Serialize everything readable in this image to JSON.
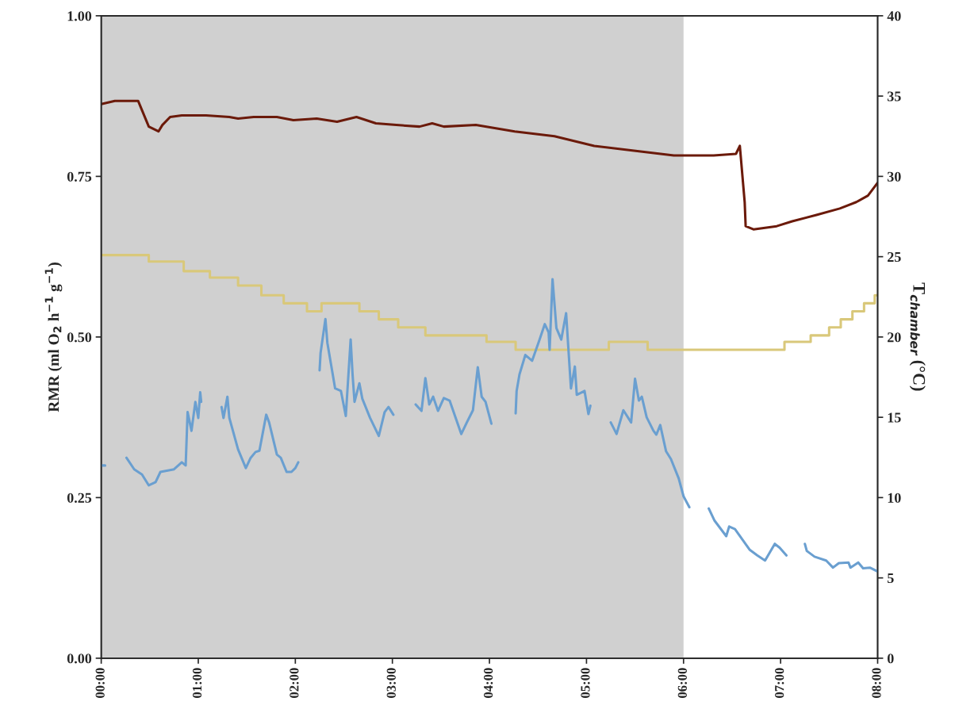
{
  "chart_data": {
    "type": "line",
    "ylabel": "RMR (ml O$_{2}$ h$^{−1}$ g$^{−1}$)",
    "y2label": "T$_{chamber}$ (°C)",
    "xlim": [
      0,
      8
    ],
    "xticks": [
      {
        "value": 0,
        "label": "00:00"
      },
      {
        "value": 1,
        "label": "01:00"
      },
      {
        "value": 2,
        "label": "02:00"
      },
      {
        "value": 3,
        "label": "03:00"
      },
      {
        "value": 4,
        "label": "04:00"
      },
      {
        "value": 5,
        "label": "05:00"
      },
      {
        "value": 6,
        "label": "06:00"
      },
      {
        "value": 7,
        "label": "07:00"
      },
      {
        "value": 8,
        "label": "08:00"
      }
    ],
    "ylim": [
      0,
      1
    ],
    "yticks": [
      {
        "value": 0,
        "label": "0.00"
      },
      {
        "value": 0.25,
        "label": "0.25"
      },
      {
        "value": 0.5,
        "label": "0.50"
      },
      {
        "value": 0.75,
        "label": "0.75"
      },
      {
        "value": 1,
        "label": "1.00"
      }
    ],
    "y2lim": [
      0,
      40
    ],
    "y2ticks": [
      0,
      5,
      10,
      15,
      20,
      25,
      30,
      35,
      40
    ],
    "bands": [
      {
        "axis": "x",
        "from": 0,
        "to": 6,
        "color": "#d0d0d0"
      }
    ],
    "series": [
      {
        "axis": "y",
        "color": "#6a9fd0",
        "x": [
          0.26,
          0.34,
          0.42,
          0.49,
          0.56,
          0.61,
          0.75,
          0.83,
          0.87,
          0.89,
          0.93,
          0.97,
          1.0,
          1.02,
          1.03,
          1.13,
          1.24,
          1.26,
          1.3,
          1.32,
          1.41,
          1.49,
          1.54,
          1.59,
          1.63,
          1.7,
          1.73,
          1.81,
          1.85,
          1.91,
          1.96,
          2.0,
          2.03,
          2.14,
          2.25,
          2.26,
          2.31,
          2.33,
          2.41,
          2.47,
          2.52,
          2.57,
          2.59,
          2.61,
          2.66,
          2.69,
          2.77,
          2.86,
          2.92,
          2.96,
          3.01,
          3.12,
          3.24,
          3.3,
          3.34,
          3.38,
          3.42,
          3.47,
          3.53,
          3.59,
          3.71,
          3.77,
          3.83,
          3.88,
          3.92,
          3.96,
          4.02,
          4.15,
          4.27,
          4.28,
          4.31,
          4.37,
          4.44,
          4.51,
          4.57,
          4.61,
          4.62,
          4.65,
          4.69,
          4.74,
          4.79,
          4.84,
          4.88,
          4.9,
          4.98,
          5.02,
          5.04,
          5.15,
          5.25,
          5.31,
          5.38,
          5.46,
          5.5,
          5.54,
          5.57,
          5.62,
          5.69,
          5.72,
          5.76,
          5.82,
          5.87,
          5.95,
          6.0,
          6.06,
          6.16,
          6.26,
          6.32,
          6.44,
          6.47,
          6.53,
          6.68,
          6.76,
          6.84,
          6.94,
          6.99,
          7.06,
          7.15,
          7.25,
          7.27,
          7.35,
          7.47,
          7.54,
          7.6,
          7.7,
          7.72,
          7.8,
          7.85,
          7.92,
          8.0
        ],
        "values": [
          0.312,
          0.294,
          0.286,
          0.269,
          0.274,
          0.29,
          0.294,
          0.305,
          0.3,
          0.383,
          0.354,
          0.399,
          0.374,
          0.414,
          0.399,
          null,
          0.391,
          0.374,
          0.407,
          0.374,
          0.325,
          0.296,
          0.312,
          0.321,
          0.323,
          0.379,
          0.367,
          0.317,
          0.312,
          0.29,
          0.29,
          0.296,
          0.305,
          null,
          0.448,
          0.475,
          0.528,
          0.491,
          0.42,
          0.416,
          0.377,
          0.496,
          0.441,
          0.399,
          0.428,
          0.404,
          0.374,
          0.346,
          0.383,
          0.391,
          0.379,
          null,
          0.395,
          0.385,
          0.436,
          0.395,
          0.407,
          0.385,
          0.405,
          0.401,
          0.349,
          0.368,
          0.386,
          0.453,
          0.407,
          0.399,
          0.365,
          null,
          0.381,
          0.416,
          0.442,
          0.472,
          0.463,
          0.493,
          0.52,
          0.507,
          0.48,
          0.59,
          0.514,
          0.496,
          0.537,
          0.42,
          0.454,
          0.41,
          0.416,
          0.38,
          0.393,
          null,
          0.367,
          0.349,
          0.386,
          0.367,
          0.435,
          0.401,
          0.407,
          0.375,
          0.354,
          0.348,
          0.363,
          0.322,
          0.31,
          0.28,
          0.252,
          0.235,
          null,
          0.233,
          0.214,
          0.19,
          0.205,
          0.201,
          0.169,
          0.16,
          0.152,
          0.178,
          0.172,
          0.16,
          null,
          0.178,
          0.167,
          0.158,
          0.152,
          0.141,
          0.148,
          0.149,
          0.141,
          0.149,
          0.14,
          0.141,
          0.135
        ]
      },
      {
        "type": "line",
        "axis": "y",
        "color": "#6a9fd0",
        "x": [
          0.0,
          0.04
        ],
        "values": [
          0.3,
          0.3
        ]
      },
      {
        "type": "line",
        "axis": "y2",
        "color": "#6b1a0a",
        "x": [
          0,
          0.14,
          0.38,
          0.49,
          0.59,
          0.63,
          0.71,
          0.83,
          1.08,
          1.32,
          1.41,
          1.57,
          1.81,
          1.98,
          2.22,
          2.43,
          2.63,
          2.83,
          3.04,
          3.28,
          3.41,
          3.53,
          3.86,
          4.26,
          4.67,
          5.08,
          5.49,
          5.9,
          6.31,
          6.54,
          6.58,
          6.63,
          6.64,
          6.72,
          6.96,
          7.12,
          7.37,
          7.61,
          7.78,
          7.9,
          8.0
        ],
        "values": [
          34.5,
          34.7,
          34.7,
          33.1,
          32.8,
          33.2,
          33.7,
          33.8,
          33.8,
          33.7,
          33.6,
          33.7,
          33.7,
          33.5,
          33.6,
          33.4,
          33.7,
          33.3,
          33.2,
          33.1,
          33.3,
          33.1,
          33.2,
          32.8,
          32.5,
          31.9,
          31.6,
          31.3,
          31.3,
          31.4,
          31.9,
          28.4,
          26.9,
          26.7,
          26.9,
          27.2,
          27.6,
          28.0,
          28.4,
          28.8,
          29.6
        ]
      },
      {
        "type": "step",
        "axis": "y2",
        "color": "#d9c87a",
        "x": [
          0,
          0.49,
          0.85,
          1.12,
          1.41,
          1.65,
          1.88,
          2.12,
          2.27,
          2.66,
          2.86,
          3.06,
          3.34,
          3.97,
          4.27,
          5.23,
          5.63,
          7.04,
          7.31,
          7.5,
          7.62,
          7.74,
          7.86,
          7.97,
          8.0
        ],
        "values": [
          25.1,
          24.7,
          24.1,
          23.7,
          23.2,
          22.6,
          22.1,
          21.6,
          22.1,
          21.6,
          21.1,
          20.6,
          20.1,
          19.7,
          19.2,
          19.7,
          19.2,
          19.7,
          20.1,
          20.6,
          21.1,
          21.6,
          22.1,
          22.6,
          22.6
        ]
      }
    ]
  }
}
